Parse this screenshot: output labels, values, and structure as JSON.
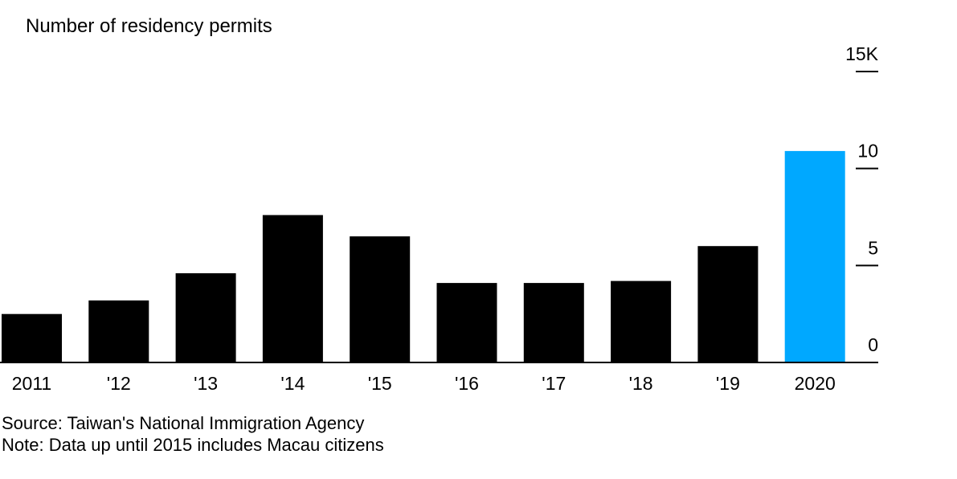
{
  "chart_data": {
    "type": "bar",
    "title": "Number of residency permits",
    "categories": [
      "2011",
      "'12",
      "'13",
      "'14",
      "'15",
      "'16",
      "'17",
      "'18",
      "'19",
      "2020"
    ],
    "values": [
      2.5,
      3.2,
      4.6,
      7.6,
      6.5,
      4.1,
      4.1,
      4.2,
      6.0,
      10.9
    ],
    "unit": "K",
    "ylim": [
      0,
      15
    ],
    "yticks": [
      {
        "value": 0,
        "label": "0"
      },
      {
        "value": 5,
        "label": "5"
      },
      {
        "value": 10,
        "label": "10"
      },
      {
        "value": 15,
        "label": "15K"
      }
    ],
    "y_axis_side": "right",
    "grid": false,
    "bar_color": "#000000",
    "highlight_index": 9,
    "highlight_color": "#00a8ff"
  },
  "footer": {
    "source": "Source: Taiwan's National Immigration Agency",
    "note": "Note: Data up until 2015 includes Macau citizens"
  }
}
